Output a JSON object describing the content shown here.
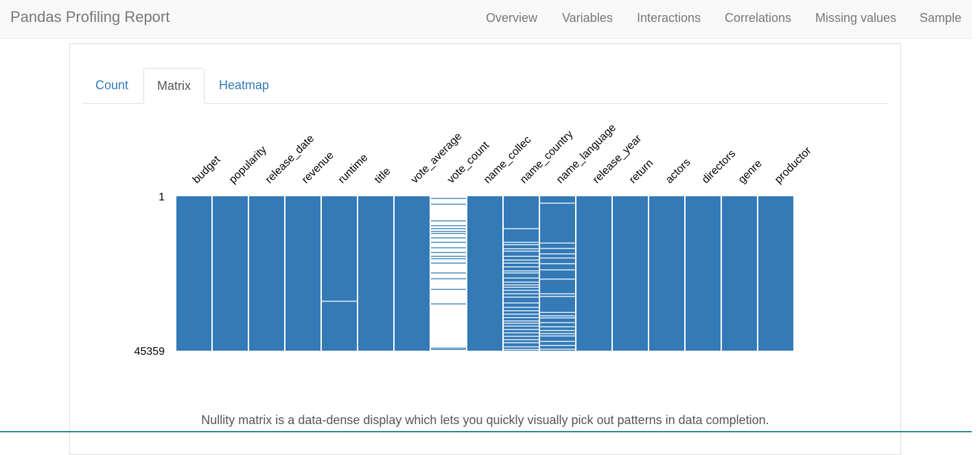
{
  "app": {
    "brand": "Pandas Profiling Report"
  },
  "nav": {
    "items": [
      "Overview",
      "Variables",
      "Interactions",
      "Correlations",
      "Missing values",
      "Sample"
    ]
  },
  "tabs": {
    "items": [
      "Count",
      "Matrix",
      "Heatmap"
    ],
    "active": "Matrix"
  },
  "chart_data": {
    "type": "heatmap",
    "title": "",
    "row_labels": [
      "1",
      "45359"
    ],
    "row_range": [
      1,
      45359
    ],
    "colors": {
      "present": "#337ab7",
      "missing": "#ffffff"
    },
    "columns": [
      {
        "name": "budget",
        "missing_rows": []
      },
      {
        "name": "popularity",
        "missing_rows": []
      },
      {
        "name": "release_date",
        "missing_rows": []
      },
      {
        "name": "revenue",
        "missing_rows": []
      },
      {
        "name": "runtime",
        "missing_rows": [
          30800
        ]
      },
      {
        "name": "title",
        "missing_rows": []
      },
      {
        "name": "vote_average",
        "missing_rows": []
      },
      {
        "name": "vote_count",
        "missing_rows": [],
        "present_rows": [
          600,
          2300,
          7200,
          8600,
          9500,
          10300,
          10900,
          12200,
          13500,
          15100,
          16500,
          17600,
          18300,
          19600,
          22500,
          24200,
          27300,
          31600,
          44600,
          45000
        ]
      },
      {
        "name": "name_collec",
        "missing_rows": []
      },
      {
        "name": "name_country",
        "missing_rows": [
          9500,
          13500,
          14200,
          15400,
          16100,
          17600,
          18700,
          19600,
          20700,
          21900,
          22500,
          24000,
          25200,
          26000,
          26700,
          27600,
          28600,
          29600,
          31300,
          32600,
          33600,
          34600,
          35600,
          36600,
          37300,
          38100,
          39100,
          40100,
          41100,
          42100,
          43000,
          44200,
          45000
        ]
      },
      {
        "name": "name_language",
        "missing_rows": [
          2000,
          13700,
          15300,
          16900,
          18100,
          19800,
          21600,
          24300,
          28600,
          29400,
          34100,
          35100,
          35700,
          37100,
          38300,
          39400,
          40300,
          41000,
          42600,
          43800,
          44900
        ]
      },
      {
        "name": "release_year",
        "missing_rows": []
      },
      {
        "name": "return",
        "missing_rows": []
      },
      {
        "name": "actors",
        "missing_rows": []
      },
      {
        "name": "directors",
        "missing_rows": []
      },
      {
        "name": "genre",
        "missing_rows": []
      },
      {
        "name": "productor",
        "missing_rows": []
      }
    ]
  },
  "caption": "Nullity matrix is a data-dense display which lets you quickly visually pick out patterns in data completion."
}
